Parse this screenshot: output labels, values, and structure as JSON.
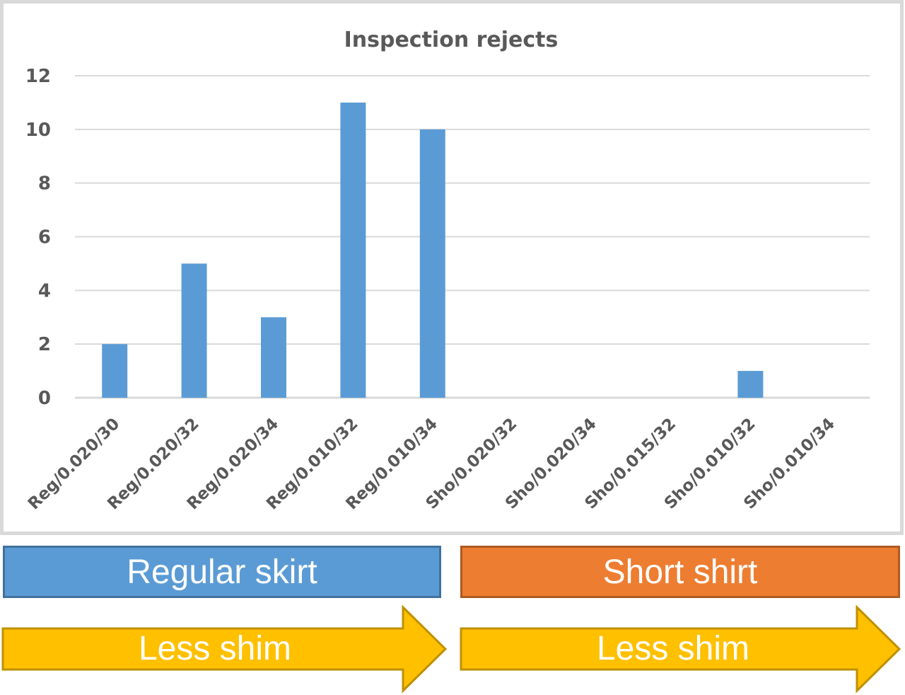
{
  "chart_data": {
    "type": "bar",
    "title": "Inspection rejects",
    "xlabel": "",
    "ylabel": "",
    "categories": [
      "Reg/0.020/30",
      "Reg/0.020/32",
      "Reg/0.020/34",
      "Reg/0.010/32",
      "Reg/0.010/34",
      "Sho/0.020/32",
      "Sho/0.020/34",
      "Sho/0.015/32",
      "Sho/0.010/32",
      "Sho/0.010/34"
    ],
    "values": [
      2,
      5,
      3,
      11,
      10,
      0,
      0,
      0,
      1,
      0
    ],
    "ylim": [
      0,
      12
    ],
    "yticks": [
      "0",
      "2",
      "4",
      "6",
      "8",
      "10",
      "12"
    ],
    "grid": true,
    "legend": "none",
    "bar_color": "#5b9bd5",
    "grid_color": "#d9d9d9"
  },
  "groups": {
    "regular_label": "Regular skirt",
    "short_label": "Short shirt",
    "regular_color": "#5b9bd5",
    "short_color": "#ed7d31"
  },
  "arrows": {
    "left_label": "Less shim",
    "right_label": "Less shim",
    "color": "#ffc000",
    "border_color": "#bf9000"
  }
}
